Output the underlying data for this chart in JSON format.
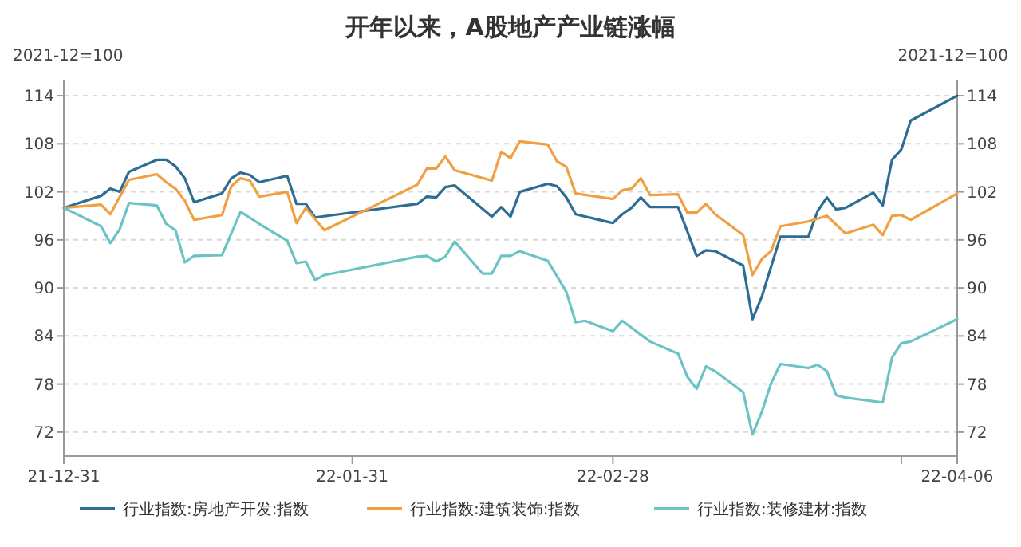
{
  "chart_data": {
    "type": "line",
    "title": "开年以来，A股地产产业链涨幅",
    "ylabel": "2021-12=100",
    "y2label": "2021-12=100",
    "xlim": [
      "2021-12-31",
      "2022-04-06"
    ],
    "xticks": [
      {
        "value": "2021-12-31",
        "label": "21-12-31"
      },
      {
        "value": "2022-01-31",
        "label": "22-01-31"
      },
      {
        "value": "2022-02-28",
        "label": "22-02-28"
      },
      {
        "value": "2022-03-31",
        "label": null
      },
      {
        "value": "2022-04-06",
        "label": "22-04-06"
      }
    ],
    "ylim": [
      69,
      116
    ],
    "yticks": [
      72,
      78,
      84,
      90,
      96,
      102,
      108,
      114
    ],
    "y2lim": [
      69,
      116
    ],
    "y2ticks": [
      72,
      78,
      84,
      90,
      96,
      102,
      108,
      114
    ],
    "grid": "y",
    "legend": "bottom",
    "marker": "none",
    "line_style": "solid",
    "series": [
      {
        "name": "行业指数:房地产开发:指数",
        "color": "#2e6d93",
        "x": [
          "2021-12-31",
          "2022-01-04",
          "2022-01-05",
          "2022-01-06",
          "2022-01-07",
          "2022-01-10",
          "2022-01-11",
          "2022-01-12",
          "2022-01-13",
          "2022-01-14",
          "2022-01-17",
          "2022-01-18",
          "2022-01-19",
          "2022-01-20",
          "2022-01-21",
          "2022-01-24",
          "2022-01-25",
          "2022-01-26",
          "2022-01-27",
          "2022-02-07",
          "2022-02-08",
          "2022-02-09",
          "2022-02-10",
          "2022-02-11",
          "2022-02-15",
          "2022-02-16",
          "2022-02-17",
          "2022-02-18",
          "2022-02-21",
          "2022-02-22",
          "2022-02-23",
          "2022-02-24",
          "2022-02-28",
          "2022-03-01",
          "2022-03-02",
          "2022-03-03",
          "2022-03-04",
          "2022-03-07",
          "2022-03-09",
          "2022-03-10",
          "2022-03-11",
          "2022-03-14",
          "2022-03-15",
          "2022-03-16",
          "2022-03-18",
          "2022-03-21",
          "2022-03-22",
          "2022-03-23",
          "2022-03-24",
          "2022-03-25",
          "2022-03-28",
          "2022-03-29",
          "2022-03-30",
          "2022-03-31",
          "2022-04-01",
          "2022-04-06"
        ],
        "values": [
          100,
          101.5,
          102.4,
          102.0,
          104.5,
          106.0,
          106.0,
          105.2,
          103.7,
          100.7,
          101.8,
          103.7,
          104.4,
          104.1,
          103.2,
          104.0,
          100.5,
          100.5,
          98.8,
          100.5,
          101.4,
          101.3,
          102.6,
          102.8,
          98.9,
          100.1,
          98.9,
          102.0,
          103.0,
          102.7,
          101.3,
          99.2,
          98.1,
          99.2,
          100.0,
          101.3,
          100.1,
          100.1,
          94.0,
          94.7,
          94.6,
          92.8,
          86.1,
          88.9,
          96.4,
          96.4,
          99.6,
          101.3,
          99.8,
          100.0,
          101.9,
          100.3,
          106.0,
          107.3,
          110.9,
          114.0
        ]
      },
      {
        "name": "行业指数:建筑装饰:指数",
        "color": "#f0a040",
        "x": [
          "2021-12-31",
          "2022-01-04",
          "2022-01-05",
          "2022-01-07",
          "2022-01-10",
          "2022-01-11",
          "2022-01-12",
          "2022-01-13",
          "2022-01-14",
          "2022-01-17",
          "2022-01-18",
          "2022-01-19",
          "2022-01-20",
          "2022-01-21",
          "2022-01-24",
          "2022-01-25",
          "2022-01-26",
          "2022-01-28",
          "2022-02-07",
          "2022-02-08",
          "2022-02-09",
          "2022-02-10",
          "2022-02-11",
          "2022-02-15",
          "2022-02-16",
          "2022-02-17",
          "2022-02-18",
          "2022-02-21",
          "2022-02-22",
          "2022-02-23",
          "2022-02-24",
          "2022-02-28",
          "2022-03-01",
          "2022-03-02",
          "2022-03-03",
          "2022-03-04",
          "2022-03-07",
          "2022-03-08",
          "2022-03-09",
          "2022-03-10",
          "2022-03-11",
          "2022-03-14",
          "2022-03-15",
          "2022-03-16",
          "2022-03-17",
          "2022-03-18",
          "2022-03-21",
          "2022-03-23",
          "2022-03-25",
          "2022-03-28",
          "2022-03-29",
          "2022-03-30",
          "2022-03-31",
          "2022-04-01",
          "2022-04-06"
        ],
        "values": [
          100,
          100.4,
          99.2,
          103.5,
          104.2,
          103.2,
          102.4,
          100.9,
          98.5,
          99.1,
          102.7,
          103.7,
          103.4,
          101.4,
          102.0,
          98.1,
          100.0,
          97.2,
          102.9,
          104.9,
          104.9,
          106.4,
          104.7,
          103.4,
          107.0,
          106.2,
          108.3,
          107.9,
          105.8,
          105.1,
          101.8,
          101.1,
          102.2,
          102.4,
          103.7,
          101.6,
          101.7,
          99.4,
          99.4,
          100.5,
          99.2,
          96.6,
          91.6,
          93.6,
          94.6,
          97.7,
          98.3,
          99.0,
          96.8,
          97.9,
          96.6,
          99.0,
          99.1,
          98.5,
          101.8
        ]
      },
      {
        "name": "行业指数:装修建材:指数",
        "color": "#6cc3c6",
        "x": [
          "2021-12-31",
          "2022-01-04",
          "2022-01-05",
          "2022-01-06",
          "2022-01-07",
          "2022-01-10",
          "2022-01-11",
          "2022-01-12",
          "2022-01-13",
          "2022-01-14",
          "2022-01-17",
          "2022-01-19",
          "2022-01-21",
          "2022-01-24",
          "2022-01-25",
          "2022-01-26",
          "2022-01-27",
          "2022-01-28",
          "2022-02-07",
          "2022-02-08",
          "2022-02-09",
          "2022-02-10",
          "2022-02-11",
          "2022-02-14",
          "2022-02-15",
          "2022-02-16",
          "2022-02-17",
          "2022-02-18",
          "2022-02-21",
          "2022-02-23",
          "2022-02-24",
          "2022-02-25",
          "2022-02-28",
          "2022-03-01",
          "2022-03-04",
          "2022-03-07",
          "2022-03-08",
          "2022-03-09",
          "2022-03-10",
          "2022-03-11",
          "2022-03-14",
          "2022-03-15",
          "2022-03-16",
          "2022-03-17",
          "2022-03-18",
          "2022-03-21",
          "2022-03-22",
          "2022-03-23",
          "2022-03-24",
          "2022-03-25",
          "2022-03-29",
          "2022-03-30",
          "2022-03-31",
          "2022-04-01",
          "2022-04-06"
        ],
        "values": [
          100,
          97.7,
          95.6,
          97.3,
          100.6,
          100.3,
          98.0,
          97.2,
          93.2,
          94.0,
          94.1,
          99.5,
          98.0,
          95.9,
          93.1,
          93.3,
          91.0,
          91.6,
          93.9,
          94.0,
          93.3,
          93.9,
          95.8,
          91.8,
          91.8,
          94.0,
          94.0,
          94.6,
          93.4,
          89.5,
          85.7,
          85.9,
          84.6,
          85.9,
          83.3,
          81.8,
          78.9,
          77.4,
          80.2,
          79.6,
          77.0,
          71.7,
          74.5,
          78.1,
          80.5,
          80.0,
          80.4,
          79.6,
          76.6,
          76.3,
          75.7,
          81.3,
          83.1,
          83.3,
          86.1
        ]
      }
    ]
  }
}
